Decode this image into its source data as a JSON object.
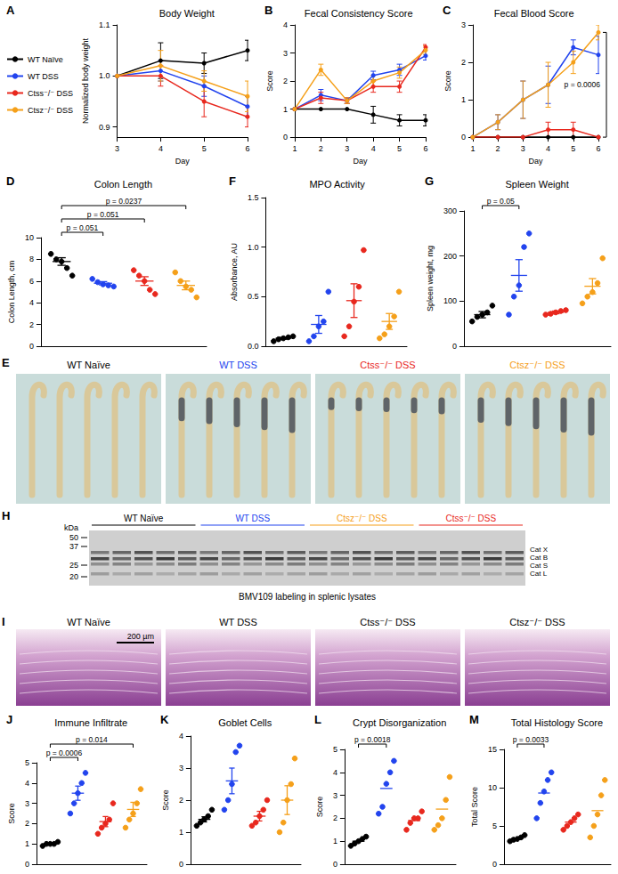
{
  "chart_data": [
    {
      "panel": "A",
      "type": "line",
      "title": "Body Weight",
      "xlabel": "Day",
      "ylabel": "Normalized body weight",
      "x": [
        3,
        4,
        5,
        6
      ],
      "xlim": [
        3,
        6
      ],
      "xticks": [
        3,
        4,
        5,
        6
      ],
      "ylim": [
        0.88,
        1.1
      ],
      "yticks": [
        0.9,
        {
          "value": 1,
          "label": "1.0"
        },
        1.1
      ],
      "grid": false,
      "legend": "left",
      "series": [
        {
          "name": "WT Naïve",
          "color": "#000000",
          "values": [
            1.0,
            1.03,
            1.025,
            1.05
          ],
          "errors": [
            0,
            0.035,
            0.02,
            0.02
          ]
        },
        {
          "name": "WT DSS",
          "color": "#2244ee",
          "values": [
            1.0,
            1.01,
            0.98,
            0.94
          ],
          "errors": [
            0,
            0.02,
            0.02,
            0.02
          ]
        },
        {
          "name": "Ctss⁻/⁻ DSS",
          "color": "#e8281e",
          "values": [
            1.0,
            1.0,
            0.95,
            0.92
          ],
          "errors": [
            0,
            0.02,
            0.03,
            0.02
          ]
        },
        {
          "name": "Ctsz⁻/⁻ DSS",
          "color": "#f5a01a",
          "values": [
            1.0,
            1.02,
            0.99,
            0.96
          ],
          "errors": [
            0,
            0.03,
            0.02,
            0.03
          ]
        }
      ]
    },
    {
      "panel": "B",
      "type": "line",
      "title": "Fecal Consistency Score",
      "xlabel": "Day",
      "ylabel": "Score",
      "x": [
        1,
        2,
        3,
        4,
        5,
        6
      ],
      "xlim": [
        1,
        6
      ],
      "xticks": [
        1,
        2,
        3,
        4,
        5,
        6
      ],
      "ylim": [
        0,
        4
      ],
      "yticks": [
        0,
        1,
        2,
        3,
        4
      ],
      "grid": false,
      "series": [
        {
          "name": "WT Naïve",
          "color": "#000000",
          "values": [
            1,
            1,
            1,
            0.8,
            0.6,
            0.6
          ],
          "errors": [
            0,
            0,
            0,
            0.3,
            0.2,
            0.2
          ]
        },
        {
          "name": "WT DSS",
          "color": "#2244ee",
          "values": [
            1,
            1.5,
            1.3,
            2.2,
            2.4,
            2.9
          ],
          "errors": [
            0,
            0.2,
            0.1,
            0.15,
            0.2,
            0.15
          ]
        },
        {
          "name": "Ctss⁻/⁻ DSS",
          "color": "#e8281e",
          "values": [
            1,
            1.4,
            1.3,
            1.8,
            1.8,
            3.2
          ],
          "errors": [
            0,
            0.2,
            0.1,
            0.2,
            0.2,
            0.1
          ]
        },
        {
          "name": "Ctsz⁻/⁻ DSS",
          "color": "#f5a01a",
          "values": [
            1,
            2.4,
            1.3,
            2.0,
            2.3,
            3.1
          ],
          "errors": [
            0,
            0.2,
            0.1,
            0.2,
            0.2,
            0.15
          ]
        }
      ]
    },
    {
      "panel": "C",
      "type": "line",
      "title": "Fecal Blood Score",
      "xlabel": "Day",
      "ylabel": "Score",
      "x": [
        1,
        2,
        3,
        4,
        5,
        6
      ],
      "xlim": [
        1,
        6
      ],
      "xticks": [
        1,
        2,
        3,
        4,
        5,
        6
      ],
      "ylim": [
        0,
        3
      ],
      "yticks": [
        0,
        1,
        2,
        3
      ],
      "grid": false,
      "series": [
        {
          "name": "WT Naïve",
          "color": "#000000",
          "values": [
            0,
            0,
            0,
            0,
            0,
            0
          ],
          "errors": [
            0,
            0,
            0,
            0,
            0,
            0
          ]
        },
        {
          "name": "WT DSS",
          "color": "#2244ee",
          "values": [
            0,
            0.4,
            1.0,
            1.4,
            2.4,
            2.2
          ],
          "errors": [
            0,
            0.2,
            0.5,
            0.5,
            0.2,
            0.5
          ]
        },
        {
          "name": "Ctss⁻/⁻ DSS",
          "color": "#e8281e",
          "values": [
            0,
            0,
            0,
            0.2,
            0.2,
            0
          ],
          "errors": [
            0,
            0,
            0,
            0.2,
            0.2,
            0
          ]
        },
        {
          "name": "Ctsz⁻/⁻ DSS",
          "color": "#f5a01a",
          "values": [
            0,
            0.4,
            1.0,
            1.4,
            2.0,
            2.8
          ],
          "errors": [
            0,
            0.2,
            0.5,
            0.6,
            0.3,
            0.2
          ]
        }
      ],
      "annotations": [
        {
          "x": 6,
          "between": [
            "Ctsz⁻/⁻ DSS",
            "Ctss⁻/⁻ DSS"
          ],
          "text": "p = 0.0006"
        }
      ]
    },
    {
      "panel": "D",
      "type": "strip",
      "title": "Colon Length",
      "ylabel": "Colon Length, cm",
      "categories": [
        null,
        null,
        null,
        null
      ],
      "colors": [
        "#000000",
        "#2244ee",
        "#e8281e",
        "#f5a01a"
      ],
      "points": [
        [
          8.5,
          8.0,
          7.8,
          7.2,
          6.5
        ],
        [
          6.2,
          5.9,
          5.7,
          5.6,
          5.5
        ],
        [
          7.0,
          6.5,
          6.0,
          5.2,
          4.8
        ],
        [
          6.8,
          6.0,
          5.5,
          5.2,
          4.5
        ]
      ],
      "means": [
        7.8,
        5.8,
        6.0,
        5.6
      ],
      "errors": [
        0.35,
        0.15,
        0.4,
        0.4
      ],
      "ylim": [
        0,
        10
      ],
      "yticks": [
        0,
        2,
        4,
        6,
        8,
        10
      ],
      "grid": false,
      "tick_labels": "y",
      "annotations": [
        {
          "from": 0,
          "to": 1,
          "text": "p = 0.051"
        },
        {
          "from": 0,
          "to": 2,
          "text": "p = 0.051"
        },
        {
          "from": 0,
          "to": 3,
          "text": "p = 0.0237"
        }
      ]
    },
    {
      "panel": "F",
      "type": "strip",
      "title": "MPO Activity",
      "ylabel": "Absorbance, AU",
      "categories": [
        null,
        null,
        null,
        null
      ],
      "colors": [
        "#000000",
        "#2244ee",
        "#e8281e",
        "#f5a01a"
      ],
      "points": [
        [
          0.05,
          0.07,
          0.08,
          0.09,
          0.1
        ],
        [
          0.05,
          0.1,
          0.2,
          0.25,
          0.55
        ],
        [
          0.1,
          0.2,
          0.45,
          0.6,
          0.97
        ],
        [
          0.08,
          0.12,
          0.2,
          0.3,
          0.55
        ]
      ],
      "means": [
        0.08,
        0.22,
        0.46,
        0.25
      ],
      "errors": [
        0.01,
        0.09,
        0.17,
        0.08
      ],
      "ylim": [
        0,
        1.5
      ],
      "yticks": [
        {
          "value": 0,
          "label": "0.0"
        },
        0.5,
        {
          "value": 1,
          "label": "1.0"
        },
        1.5
      ],
      "grid": false,
      "tick_labels": "y"
    },
    {
      "panel": "G",
      "type": "strip",
      "title": "Spleen Weight",
      "ylabel": "Spleen weight, mg",
      "categories": [
        null,
        null,
        null,
        null
      ],
      "colors": [
        "#000000",
        "#2244ee",
        "#e8281e",
        "#f5a01a"
      ],
      "points": [
        [
          55,
          65,
          70,
          75,
          90
        ],
        [
          70,
          110,
          135,
          220,
          250
        ],
        [
          70,
          72,
          75,
          78,
          80
        ],
        [
          95,
          110,
          120,
          140,
          195
        ]
      ],
      "means": [
        70,
        157,
        75,
        133
      ],
      "errors": [
        7,
        35,
        3,
        17
      ],
      "ylim": [
        0,
        300
      ],
      "yticks": [
        0,
        100,
        200,
        300
      ],
      "grid": false,
      "tick_labels": "y",
      "annotations": [
        {
          "from": 0,
          "to": 1,
          "text": "p = 0.05"
        }
      ]
    },
    {
      "panel": "J",
      "type": "strip",
      "title": "Immune Infiltrate",
      "ylabel": "Score",
      "categories": [
        null,
        null,
        null,
        null
      ],
      "colors": [
        "#000000",
        "#2244ee",
        "#e8281e",
        "#f5a01a"
      ],
      "points": [
        [
          0.9,
          1.0,
          1.0,
          1.0,
          1.1
        ],
        [
          2.5,
          3.0,
          3.5,
          4.0,
          4.5
        ],
        [
          1.5,
          1.8,
          2.0,
          2.2,
          3.0
        ],
        [
          1.8,
          2.2,
          2.5,
          3.0,
          3.7
        ]
      ],
      "means": [
        1.0,
        3.5,
        2.1,
        2.7
      ],
      "errors": [
        0.04,
        0.35,
        0.25,
        0.35
      ],
      "ylim": [
        0,
        5
      ],
      "yticks": [
        0,
        1,
        2,
        3,
        4,
        5
      ],
      "grid": false,
      "tick_labels": "y",
      "annotations": [
        {
          "from": 0,
          "to": 1,
          "text": "p = 0.0006"
        },
        {
          "from": 0,
          "to": 3,
          "text": "p = 0.014"
        }
      ]
    },
    {
      "panel": "K",
      "type": "strip",
      "title": "Goblet Cells",
      "ylabel": "Score",
      "categories": [
        null,
        null,
        null,
        null
      ],
      "colors": [
        "#000000",
        "#2244ee",
        "#e8281e",
        "#f5a01a"
      ],
      "points": [
        [
          1.2,
          1.3,
          1.4,
          1.5,
          1.7
        ],
        [
          1.7,
          2.0,
          2.5,
          3.5,
          3.7
        ],
        [
          1.2,
          1.3,
          1.5,
          1.7,
          2.0
        ],
        [
          1.0,
          1.3,
          2.0,
          2.5,
          3.3
        ]
      ],
      "means": [
        1.4,
        2.6,
        1.5,
        2.0
      ],
      "errors": [
        0.08,
        0.4,
        0.15,
        0.45
      ],
      "ylim": [
        0,
        4
      ],
      "yticks": [
        0,
        1,
        2,
        3,
        4
      ],
      "grid": false,
      "tick_labels": "y"
    },
    {
      "panel": "L",
      "type": "strip",
      "title": "Crypt Disorganization",
      "ylabel": "Score",
      "categories": [
        null,
        null,
        null,
        null
      ],
      "colors": [
        "#000000",
        "#2244ee",
        "#e8281e",
        "#f5a01a"
      ],
      "points": [
        [
          0.8,
          0.9,
          1.0,
          1.1,
          1.2
        ],
        [
          2.2,
          2.5,
          3.5,
          4.0,
          4.5
        ],
        [
          1.5,
          1.8,
          2.0,
          2.0,
          2.3
        ],
        [
          1.5,
          1.7,
          2.0,
          2.8,
          3.8
        ]
      ],
      "means": [
        1.0,
        3.3,
        1.9,
        2.4
      ],
      "ylim": [
        0,
        5
      ],
      "yticks": [
        0,
        1,
        2,
        3,
        4,
        5
      ],
      "grid": false,
      "tick_labels": "y",
      "annotations": [
        {
          "from": 0,
          "to": 1,
          "text": "p = 0.0018"
        }
      ]
    },
    {
      "panel": "M",
      "type": "strip",
      "title": "Total Histology Score",
      "ylabel": "Total Score",
      "categories": [
        null,
        null,
        null,
        null
      ],
      "colors": [
        "#000000",
        "#2244ee",
        "#e8281e",
        "#f5a01a"
      ],
      "points": [
        [
          3.0,
          3.2,
          3.3,
          3.5,
          3.8
        ],
        [
          6.0,
          8.0,
          9.5,
          11.0,
          12.0
        ],
        [
          4.5,
          5.0,
          5.5,
          6.0,
          6.5
        ],
        [
          3.5,
          5.0,
          6.5,
          9.0,
          11.0
        ]
      ],
      "means": [
        3.4,
        9.3,
        5.5,
        7.0
      ],
      "ylim": [
        0,
        15
      ],
      "yticks": [
        0,
        5,
        10,
        15
      ],
      "grid": false,
      "tick_labels": "y",
      "annotations": [
        {
          "from": 0,
          "to": 1,
          "text": "p = 0.0033"
        }
      ]
    }
  ],
  "image_panels": [
    {
      "panel": "E",
      "titles": [
        "WT Naïve",
        "WT DSS",
        "Ctss⁻/⁻ DSS",
        "Ctsz⁻/⁻ DSS"
      ],
      "colors": [
        "#000000",
        "#2244ee",
        "#e8281e",
        "#f5a01a"
      ]
    },
    {
      "panel": "H",
      "unit": "kDa",
      "markers": [
        50,
        37,
        25,
        20
      ],
      "groups": [
        "WT Naïve",
        "WT DSS",
        "Ctsz⁻/⁻ DSS",
        "Ctss⁻/⁻ DSS"
      ],
      "colors": [
        "#000000",
        "#2244ee",
        "#f5a01a",
        "#e8281e"
      ],
      "bands": [
        "Cat X",
        "Cat B",
        "Cat S",
        "Cat L"
      ],
      "caption": "BMV109 labeling in splenic lysates"
    },
    {
      "panel": "I",
      "titles": [
        "WT Naïve",
        "WT DSS",
        "Ctss⁻/⁻ DSS",
        "Ctsz⁻/⁻ DSS"
      ],
      "scale": "200 µm"
    }
  ]
}
